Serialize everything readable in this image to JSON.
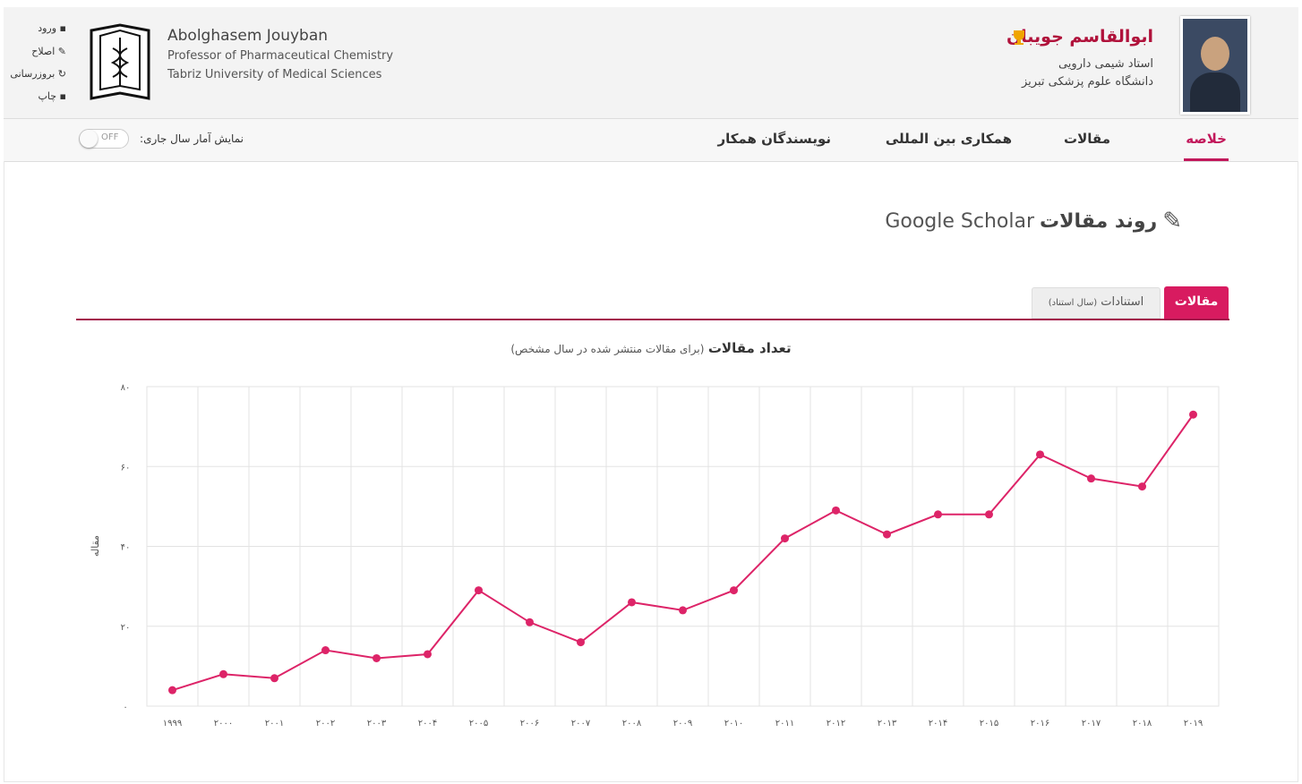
{
  "header": {
    "name_fa": "ابوالقاسم جویبان",
    "title_fa": "استاد شیمی دارویی",
    "affiliation_fa": "دانشگاه علوم پزشکی تبریز",
    "name_en": "Abolghasem Jouyban",
    "title_en": "Professor of Pharmaceutical Chemistry",
    "affiliation_en": "Tabriz University of Medical Sciences",
    "links": [
      "ورود",
      "اصلاح",
      "بروزرسانی",
      "چاپ"
    ]
  },
  "nav": {
    "tabs": [
      "خلاصه",
      "مقالات",
      "همکاری بین المللی",
      "نویسندگان همکار"
    ],
    "toggle_label": "نمایش آمار سال جاری:",
    "toggle_state": "OFF"
  },
  "section": {
    "title": "روند مقالات",
    "title_en": "Google Scholar",
    "tabs": [
      "مقالات",
      "استنادات"
    ],
    "tab_note": "(سال استناد)"
  },
  "chart_data": {
    "type": "line",
    "title": "تعداد مقالات",
    "subtitle": "(برای مقالات منتشر شده در سال مشخص)",
    "y_label": "مقاله",
    "categories": [
      "۱۹۹۹",
      "۲۰۰۰",
      "۲۰۰۱",
      "۲۰۰۲",
      "۲۰۰۳",
      "۲۰۰۴",
      "۲۰۰۵",
      "۲۰۰۶",
      "۲۰۰۷",
      "۲۰۰۸",
      "۲۰۰۹",
      "۲۰۱۰",
      "۲۰۱۱",
      "۲۰۱۲",
      "۲۰۱۳",
      "۲۰۱۴",
      "۲۰۱۵",
      "۲۰۱۶",
      "۲۰۱۷",
      "۲۰۱۸",
      "۲۰۱۹"
    ],
    "values": [
      4,
      8,
      7,
      14,
      12,
      13,
      29,
      21,
      16,
      26,
      24,
      29,
      42,
      49,
      43,
      48,
      48,
      63,
      57,
      55,
      73
    ],
    "color": "#dd2468",
    "ylim": [
      0,
      80
    ],
    "yticks": [
      {
        "value": 0,
        "label": "۰"
      },
      {
        "value": 20,
        "label": "۲۰"
      },
      {
        "value": 40,
        "label": "۴۰"
      },
      {
        "value": 60,
        "label": "۶۰"
      },
      {
        "value": 80,
        "label": "۸۰"
      }
    ],
    "grid": true
  }
}
